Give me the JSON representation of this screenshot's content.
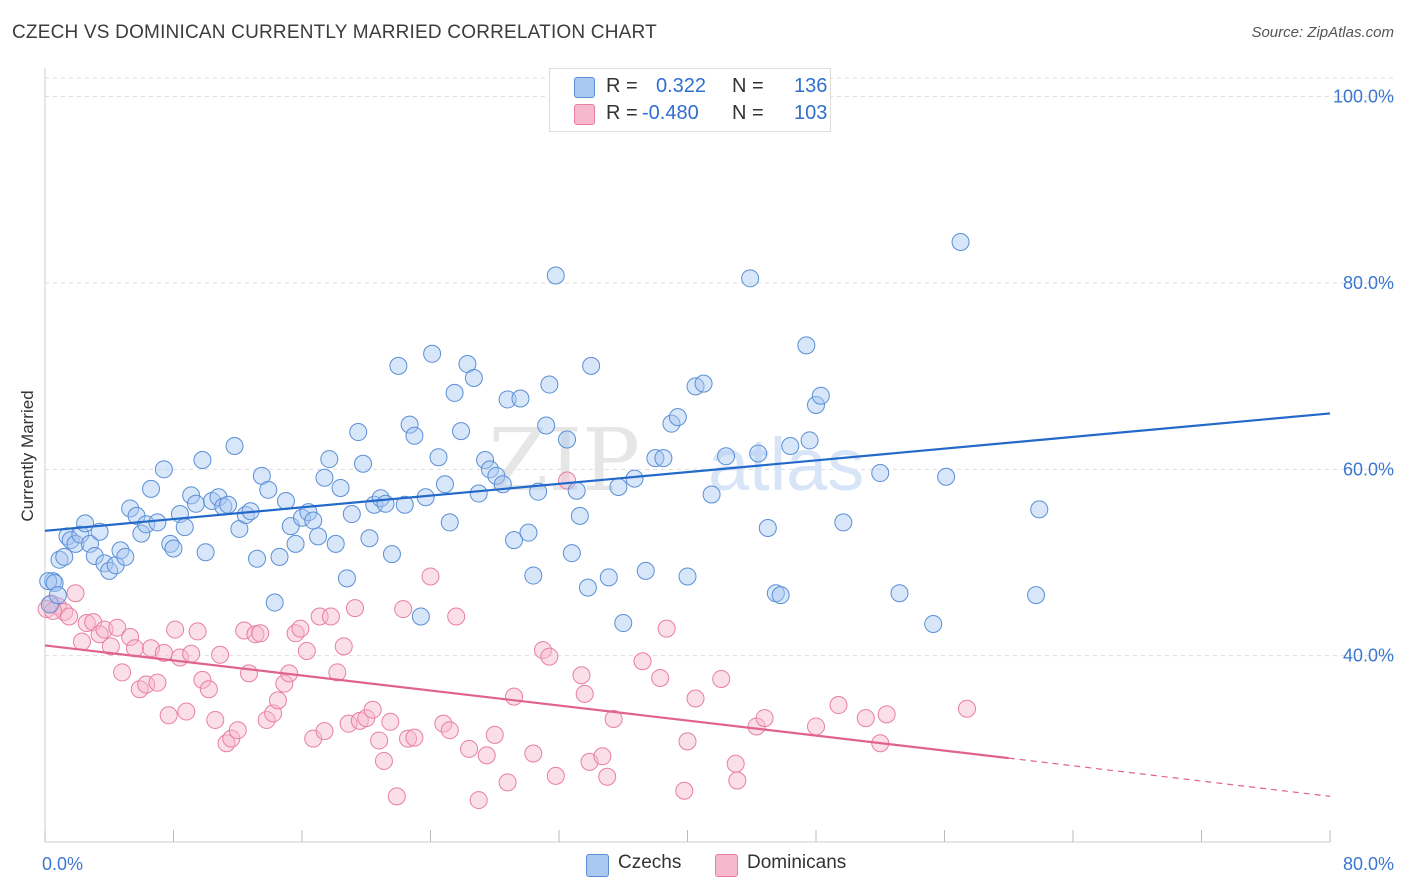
{
  "header": {
    "title": "CZECH VS DOMINICAN CURRENTLY MARRIED CORRELATION CHART",
    "source": "Source: ZipAtlas.com"
  },
  "legend": {
    "rows": [
      {
        "r_label": "R =",
        "r_value": "0.322",
        "n_label": "N =",
        "n_value": "136",
        "color": "#a9c8f2"
      },
      {
        "r_label": "R =",
        "r_value": "-0.480",
        "n_label": "N =",
        "n_value": "103",
        "color": "#f6b8cd"
      }
    ]
  },
  "bottom_legend": [
    {
      "label": "Czechs",
      "color": "#a9c8f2"
    },
    {
      "label": "Dominicans",
      "color": "#f6b8cd"
    }
  ],
  "colors": {
    "czech_fill": "#a9c8f2",
    "czech_stroke": "#5b8fd6",
    "czech_line": "#2269c9",
    "dominican_fill": "#f6b8cd",
    "dominican_stroke": "#e87fa3",
    "dominican_line": "#e0628f",
    "tick_label": "#3a77d0",
    "grid": "#dddddd"
  },
  "chart_data": {
    "type": "scatter",
    "title": "CZECH VS DOMINICAN CURRENTLY MARRIED CORRELATION CHART",
    "ylabel": "Currently Married",
    "xlabel": "",
    "xlim": [
      0,
      80
    ],
    "ylim": [
      20,
      102
    ],
    "x_tick_labels": [
      {
        "value": 0,
        "label": "0.0%"
      },
      {
        "value": 80,
        "label": "80.0%"
      }
    ],
    "y_tick_labels": [
      {
        "value": 40,
        "label": "40.0%"
      },
      {
        "value": 60,
        "label": "60.0%"
      },
      {
        "value": 80,
        "label": "80.0%"
      },
      {
        "value": 100,
        "label": "100.0%"
      }
    ],
    "grid": true,
    "legend_position": "top-center",
    "watermark": "ZIPatlas",
    "series": [
      {
        "name": "Czechs",
        "r": 0.322,
        "n": 136,
        "trend": [
          [
            0,
            53.4
          ],
          [
            80,
            66.0
          ]
        ],
        "points": [
          [
            0.5,
            48.0
          ],
          [
            0.9,
            50.3
          ],
          [
            1.2,
            50.6
          ],
          [
            1.4,
            52.8
          ],
          [
            1.6,
            52.4
          ],
          [
            1.9,
            52.0
          ],
          [
            2.2,
            53.0
          ],
          [
            2.5,
            54.2
          ],
          [
            2.8,
            52.0
          ],
          [
            3.1,
            50.7
          ],
          [
            3.4,
            53.3
          ],
          [
            3.7,
            49.9
          ],
          [
            4.0,
            49.1
          ],
          [
            4.4,
            49.7
          ],
          [
            4.7,
            51.3
          ],
          [
            5.0,
            50.6
          ],
          [
            5.3,
            55.8
          ],
          [
            5.7,
            55.0
          ],
          [
            6.0,
            53.1
          ],
          [
            6.3,
            54.1
          ],
          [
            6.6,
            57.9
          ],
          [
            7.0,
            54.3
          ],
          [
            7.4,
            60.0
          ],
          [
            7.8,
            52.0
          ],
          [
            8.0,
            51.5
          ],
          [
            8.4,
            55.2
          ],
          [
            8.7,
            53.8
          ],
          [
            9.1,
            57.2
          ],
          [
            9.4,
            56.3
          ],
          [
            9.8,
            61.0
          ],
          [
            10.0,
            51.1
          ],
          [
            10.4,
            56.6
          ],
          [
            10.8,
            57.0
          ],
          [
            11.1,
            56.0
          ],
          [
            11.4,
            56.2
          ],
          [
            11.8,
            62.5
          ],
          [
            12.1,
            53.6
          ],
          [
            12.5,
            55.1
          ],
          [
            12.8,
            55.5
          ],
          [
            13.2,
            50.4
          ],
          [
            13.5,
            59.3
          ],
          [
            13.9,
            57.8
          ],
          [
            14.3,
            45.7
          ],
          [
            14.6,
            50.6
          ],
          [
            15.0,
            56.6
          ],
          [
            15.3,
            53.9
          ],
          [
            15.6,
            52.0
          ],
          [
            16.0,
            54.8
          ],
          [
            16.4,
            55.4
          ],
          [
            16.7,
            54.5
          ],
          [
            17.0,
            52.8
          ],
          [
            17.4,
            59.1
          ],
          [
            17.7,
            61.1
          ],
          [
            18.1,
            52.0
          ],
          [
            18.4,
            58.0
          ],
          [
            18.8,
            48.3
          ],
          [
            19.1,
            55.2
          ],
          [
            19.5,
            64.0
          ],
          [
            19.8,
            60.6
          ],
          [
            20.2,
            52.6
          ],
          [
            20.5,
            56.2
          ],
          [
            20.9,
            56.9
          ],
          [
            21.2,
            56.3
          ],
          [
            21.6,
            50.9
          ],
          [
            22.0,
            71.1
          ],
          [
            22.4,
            56.2
          ],
          [
            22.7,
            64.8
          ],
          [
            23.0,
            63.6
          ],
          [
            23.4,
            44.2
          ],
          [
            23.7,
            57.0
          ],
          [
            24.1,
            72.4
          ],
          [
            24.5,
            61.3
          ],
          [
            24.9,
            58.4
          ],
          [
            25.2,
            54.3
          ],
          [
            25.5,
            68.2
          ],
          [
            25.9,
            64.1
          ],
          [
            26.3,
            71.3
          ],
          [
            26.7,
            69.8
          ],
          [
            27.0,
            57.4
          ],
          [
            27.4,
            61.0
          ],
          [
            27.7,
            60.0
          ],
          [
            28.1,
            59.3
          ],
          [
            28.5,
            58.4
          ],
          [
            28.8,
            67.5
          ],
          [
            29.2,
            52.4
          ],
          [
            29.6,
            67.6
          ],
          [
            30.1,
            53.2
          ],
          [
            30.4,
            48.6
          ],
          [
            30.7,
            57.6
          ],
          [
            31.2,
            64.7
          ],
          [
            31.4,
            69.1
          ],
          [
            31.8,
            80.8
          ],
          [
            32.5,
            63.2
          ],
          [
            32.8,
            51.0
          ],
          [
            33.1,
            57.7
          ],
          [
            33.3,
            55.0
          ],
          [
            33.8,
            47.3
          ],
          [
            34.0,
            71.1
          ],
          [
            35.1,
            48.4
          ],
          [
            35.7,
            58.1
          ],
          [
            36.0,
            43.5
          ],
          [
            36.7,
            59.0
          ],
          [
            37.4,
            49.1
          ],
          [
            38.0,
            61.2
          ],
          [
            38.5,
            61.2
          ],
          [
            39.0,
            64.9
          ],
          [
            39.4,
            65.6
          ],
          [
            40.0,
            48.5
          ],
          [
            40.5,
            68.9
          ],
          [
            41.0,
            69.2
          ],
          [
            41.5,
            57.3
          ],
          [
            42.4,
            61.4
          ],
          [
            43.9,
            80.5
          ],
          [
            44.4,
            61.7
          ],
          [
            45.0,
            53.7
          ],
          [
            45.5,
            46.7
          ],
          [
            45.8,
            46.5
          ],
          [
            46.4,
            62.5
          ],
          [
            47.4,
            73.3
          ],
          [
            47.6,
            63.1
          ],
          [
            48.0,
            66.9
          ],
          [
            48.3,
            67.9
          ],
          [
            49.7,
            54.3
          ],
          [
            52.0,
            59.6
          ],
          [
            53.2,
            46.7
          ],
          [
            55.3,
            43.4
          ],
          [
            56.1,
            59.2
          ],
          [
            57.0,
            84.4
          ],
          [
            61.7,
            46.5
          ],
          [
            61.9,
            55.7
          ],
          [
            0.3,
            45.5
          ],
          [
            0.2,
            48.0
          ],
          [
            0.6,
            47.8
          ],
          [
            0.8,
            46.5
          ]
        ]
      },
      {
        "name": "Dominicans",
        "r": -0.48,
        "n": 103,
        "trend": [
          [
            0,
            41.1
          ],
          [
            60,
            29.0
          ]
        ],
        "trend_dashed": [
          [
            60,
            29.0
          ],
          [
            80,
            24.9
          ]
        ],
        "points": [
          [
            0.4,
            45.6
          ],
          [
            0.8,
            45.3
          ],
          [
            1.2,
            44.7
          ],
          [
            1.5,
            44.2
          ],
          [
            1.9,
            46.7
          ],
          [
            2.3,
            41.5
          ],
          [
            2.6,
            43.5
          ],
          [
            3.0,
            43.6
          ],
          [
            3.4,
            42.3
          ],
          [
            3.7,
            42.8
          ],
          [
            4.1,
            41.0
          ],
          [
            4.5,
            43.0
          ],
          [
            4.8,
            38.2
          ],
          [
            5.3,
            42.0
          ],
          [
            5.6,
            40.8
          ],
          [
            5.9,
            36.4
          ],
          [
            6.3,
            36.9
          ],
          [
            6.6,
            40.8
          ],
          [
            7.0,
            37.1
          ],
          [
            7.4,
            40.3
          ],
          [
            7.7,
            33.6
          ],
          [
            8.1,
            42.8
          ],
          [
            8.4,
            39.8
          ],
          [
            8.8,
            34.0
          ],
          [
            9.1,
            40.2
          ],
          [
            9.5,
            42.6
          ],
          [
            9.8,
            37.4
          ],
          [
            10.2,
            36.4
          ],
          [
            10.6,
            33.1
          ],
          [
            10.9,
            40.1
          ],
          [
            11.3,
            30.6
          ],
          [
            11.6,
            31.1
          ],
          [
            12.0,
            32.0
          ],
          [
            12.4,
            42.7
          ],
          [
            12.7,
            38.1
          ],
          [
            13.1,
            42.3
          ],
          [
            13.4,
            42.4
          ],
          [
            13.8,
            33.1
          ],
          [
            14.2,
            33.8
          ],
          [
            14.5,
            35.2
          ],
          [
            14.9,
            37.0
          ],
          [
            15.2,
            38.1
          ],
          [
            15.6,
            42.4
          ],
          [
            15.9,
            42.9
          ],
          [
            16.3,
            40.5
          ],
          [
            16.7,
            31.1
          ],
          [
            17.1,
            44.2
          ],
          [
            17.4,
            31.9
          ],
          [
            17.8,
            44.2
          ],
          [
            18.2,
            38.2
          ],
          [
            18.6,
            41.0
          ],
          [
            18.9,
            32.7
          ],
          [
            19.3,
            45.1
          ],
          [
            19.6,
            33.0
          ],
          [
            20.0,
            33.3
          ],
          [
            20.4,
            34.2
          ],
          [
            20.8,
            30.9
          ],
          [
            21.1,
            28.7
          ],
          [
            21.5,
            32.9
          ],
          [
            21.9,
            24.9
          ],
          [
            22.3,
            45.0
          ],
          [
            22.6,
            31.1
          ],
          [
            23.0,
            31.2
          ],
          [
            24.0,
            48.5
          ],
          [
            24.8,
            32.7
          ],
          [
            25.2,
            32.0
          ],
          [
            25.6,
            44.2
          ],
          [
            26.4,
            30.0
          ],
          [
            27.0,
            24.5
          ],
          [
            27.5,
            29.3
          ],
          [
            28.0,
            31.5
          ],
          [
            28.8,
            26.4
          ],
          [
            29.2,
            35.6
          ],
          [
            30.4,
            29.5
          ],
          [
            31.0,
            40.6
          ],
          [
            31.4,
            39.9
          ],
          [
            31.8,
            27.1
          ],
          [
            32.5,
            58.8
          ],
          [
            33.4,
            37.9
          ],
          [
            33.6,
            35.9
          ],
          [
            33.9,
            28.6
          ],
          [
            34.7,
            29.2
          ],
          [
            35.0,
            27.0
          ],
          [
            35.4,
            33.2
          ],
          [
            37.2,
            39.4
          ],
          [
            38.3,
            37.6
          ],
          [
            38.7,
            42.9
          ],
          [
            39.8,
            25.5
          ],
          [
            40.0,
            30.8
          ],
          [
            40.5,
            35.4
          ],
          [
            42.1,
            37.5
          ],
          [
            43.0,
            28.4
          ],
          [
            43.1,
            26.6
          ],
          [
            44.3,
            32.4
          ],
          [
            44.8,
            33.3
          ],
          [
            48.0,
            32.4
          ],
          [
            49.4,
            34.7
          ],
          [
            51.1,
            33.3
          ],
          [
            52.0,
            30.6
          ],
          [
            52.4,
            33.7
          ],
          [
            57.4,
            34.3
          ],
          [
            0.1,
            45.0
          ],
          [
            0.5,
            44.8
          ]
        ]
      }
    ]
  }
}
